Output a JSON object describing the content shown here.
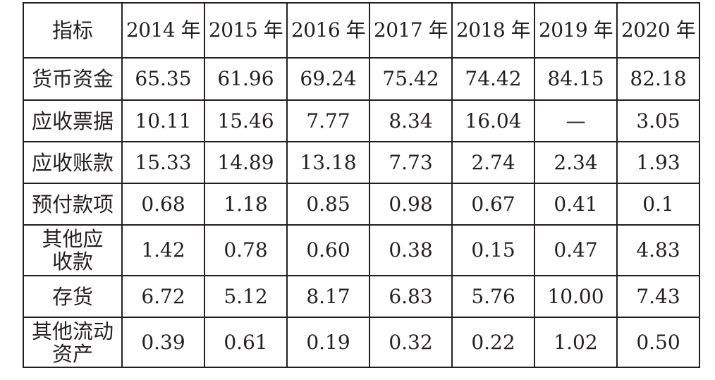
{
  "table": {
    "header": [
      "指标",
      "2014 年",
      "2015 年",
      "2016 年",
      "2017 年",
      "2018 年",
      "2019 年",
      "2020 年"
    ],
    "rows": [
      {
        "label": [
          "货币资金"
        ],
        "values": [
          "65.35",
          "61.96",
          "69.24",
          "75.42",
          "74.42",
          "84.15",
          "82.18"
        ]
      },
      {
        "label": [
          "应收票据"
        ],
        "values": [
          "10.11",
          "15.46",
          "7.77",
          "8.34",
          "16.04",
          "—",
          "3.05"
        ]
      },
      {
        "label": [
          "应收账款"
        ],
        "values": [
          "15.33",
          "14.89",
          "13.18",
          "7.73",
          "2.74",
          "2.34",
          "1.93"
        ]
      },
      {
        "label": [
          "预付款项"
        ],
        "values": [
          "0.68",
          "1.18",
          "0.85",
          "0.98",
          "0.67",
          "0.41",
          "0.1"
        ]
      },
      {
        "label": [
          "其他应",
          "收款"
        ],
        "values": [
          "1.42",
          "0.78",
          "0.60",
          "0.38",
          "0.15",
          "0.47",
          "4.83"
        ]
      },
      {
        "label": [
          "存货"
        ],
        "values": [
          "6.72",
          "5.12",
          "8.17",
          "6.83",
          "5.76",
          "10.00",
          "7.43"
        ]
      },
      {
        "label": [
          "其他流动",
          "资产"
        ],
        "values": [
          "0.39",
          "0.61",
          "0.19",
          "0.32",
          "0.22",
          "1.02",
          "0.50"
        ]
      }
    ]
  }
}
